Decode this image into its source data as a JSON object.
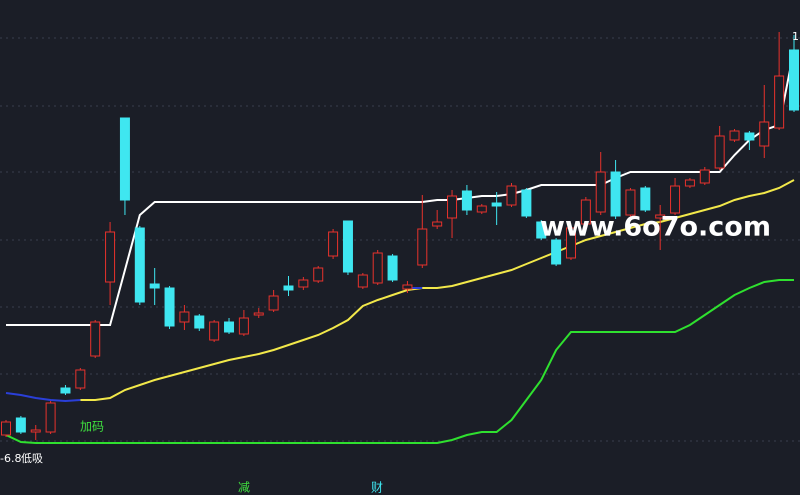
{
  "chart_data": {
    "type": "candlestick",
    "ylim": [
      0,
      495
    ],
    "up_color": "#e8322c",
    "down_color": "#3fe6f0",
    "open": [
      60,
      77,
      63,
      63,
      107,
      107,
      139,
      213,
      377,
      267,
      211,
      207,
      173,
      179,
      155,
      173,
      161,
      180,
      185,
      209,
      208,
      214,
      239,
      274,
      208,
      212,
      239,
      206,
      230,
      269,
      277,
      304,
      283,
      292,
      290,
      305,
      273,
      255,
      237,
      271,
      283,
      323,
      280,
      307,
      277,
      282,
      309,
      312,
      327,
      355,
      362,
      349,
      367,
      445
    ],
    "close": [
      73,
      63,
      65,
      92,
      102,
      125,
      173,
      263,
      295,
      193,
      207,
      169,
      183,
      167,
      173,
      163,
      177,
      182,
      199,
      205,
      215,
      227,
      263,
      223,
      220,
      242,
      215,
      210,
      266,
      273,
      299,
      285,
      289,
      289,
      309,
      279,
      257,
      231,
      267,
      295,
      323,
      279,
      305,
      285,
      280,
      309,
      315,
      325,
      359,
      364,
      355,
      373,
      419,
      385
    ],
    "high": [
      75,
      79,
      70,
      94,
      110,
      127,
      175,
      273,
      377,
      269,
      227,
      209,
      190,
      181,
      175,
      177,
      185,
      187,
      205,
      219,
      218,
      229,
      266,
      274,
      222,
      245,
      241,
      214,
      300,
      285,
      305,
      310,
      291,
      303,
      312,
      307,
      275,
      257,
      270,
      298,
      343,
      335,
      307,
      309,
      290,
      317,
      317,
      328,
      369,
      366,
      364,
      410,
      463,
      460
    ],
    "low": [
      58,
      61,
      55,
      61,
      100,
      105,
      137,
      190,
      280,
      190,
      190,
      166,
      165,
      164,
      153,
      161,
      159,
      177,
      183,
      199,
      205,
      212,
      236,
      220,
      206,
      210,
      213,
      202,
      227,
      266,
      257,
      280,
      281,
      270,
      288,
      277,
      255,
      229,
      235,
      269,
      280,
      276,
      278,
      283,
      245,
      280,
      307,
      310,
      325,
      353,
      345,
      337,
      365,
      383
    ],
    "lines": [
      {
        "color": "#ffffff",
        "values": [
          170,
          170,
          170,
          170,
          170,
          170,
          170,
          170,
          225,
          280,
          293,
          293,
          293,
          293,
          293,
          293,
          293,
          293,
          293,
          293,
          293,
          293,
          293,
          293,
          293,
          293,
          293,
          293,
          293,
          295,
          295,
          297,
          299,
          299,
          301,
          305,
          310,
          310,
          310,
          310,
          310,
          317,
          323,
          323,
          323,
          323,
          323,
          323,
          323,
          340,
          355,
          365,
          370,
          445
        ]
      },
      {
        "color": "#f2e84a",
        "values": [
          null,
          null,
          null,
          null,
          null,
          95,
          95,
          97,
          105,
          110,
          115,
          119,
          123,
          127,
          131,
          135,
          138,
          141,
          145,
          150,
          155,
          160,
          167,
          175,
          189,
          195,
          200,
          205,
          207,
          207,
          209,
          213,
          217,
          221,
          225,
          231,
          237,
          243,
          249,
          255,
          259,
          263,
          267,
          271,
          273,
          277,
          281,
          285,
          289,
          295,
          299,
          302,
          307,
          315
        ]
      },
      {
        "color": "#2a3fd8",
        "values": [
          102,
          100,
          97,
          95,
          94,
          95,
          null,
          null,
          null,
          null,
          null,
          null,
          null,
          null,
          null,
          null,
          null,
          null,
          null,
          null,
          null,
          null,
          null,
          null,
          null,
          null,
          null,
          207,
          207,
          null,
          null,
          null,
          null,
          null,
          null,
          null,
          null,
          null,
          null,
          null,
          null,
          null,
          null,
          null,
          null,
          null,
          null,
          null,
          null,
          null,
          null,
          null,
          null,
          null
        ]
      },
      {
        "color": "#2fe02f",
        "values": [
          60,
          53,
          52,
          52,
          52,
          52,
          52,
          52,
          52,
          52,
          52,
          52,
          52,
          52,
          52,
          52,
          52,
          52,
          52,
          52,
          52,
          52,
          52,
          52,
          52,
          52,
          52,
          52,
          52,
          52,
          55,
          60,
          63,
          63,
          75,
          95,
          115,
          145,
          163,
          163,
          163,
          163,
          163,
          163,
          163,
          163,
          170,
          180,
          190,
          200,
          207,
          213,
          215,
          215
        ]
      }
    ],
    "watermark": "www.6o7o.com",
    "annotations": [
      "加码",
      "-6.8",
      "低吸",
      "减",
      "财",
      "1"
    ]
  }
}
